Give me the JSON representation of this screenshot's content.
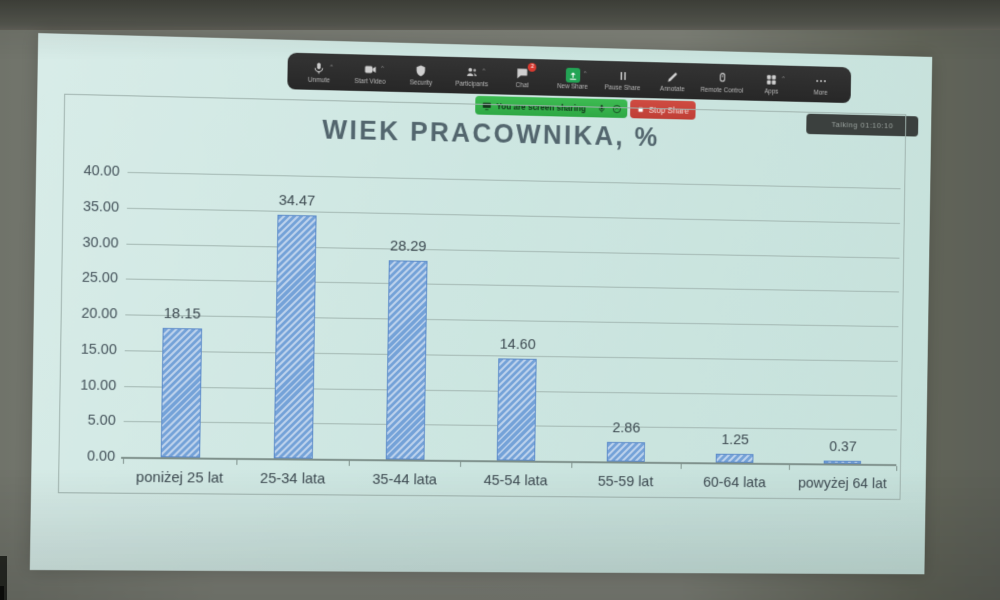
{
  "scene": {
    "corner_badge": "Talking 01:10:10"
  },
  "zoom_toolbar": {
    "items": [
      {
        "label": "Unmute",
        "icon": "mic-icon",
        "caret": true
      },
      {
        "label": "Start Video",
        "icon": "video-camera-icon",
        "caret": true
      },
      {
        "label": "Security",
        "icon": "shield-icon"
      },
      {
        "label": "Participants",
        "icon": "participants-icon",
        "caret": true
      },
      {
        "label": "Chat",
        "icon": "chat-bubble-icon",
        "badge": "2"
      },
      {
        "label": "New Share",
        "icon": "share-screen-icon",
        "caret": true,
        "highlight": true
      },
      {
        "label": "Pause Share",
        "icon": "pause-icon"
      },
      {
        "label": "Annotate",
        "icon": "pencil-icon"
      },
      {
        "label": "Remote Control",
        "icon": "remote-control-icon"
      },
      {
        "label": "Apps",
        "icon": "apps-grid-icon",
        "caret": true
      },
      {
        "label": "More",
        "icon": "ellipsis-icon"
      }
    ]
  },
  "share_banner": {
    "text": "You are screen sharing",
    "stop_label": "Stop Share"
  },
  "chart_data": {
    "type": "bar",
    "title": "WIEK PRACOWNIKA, %",
    "categories": [
      "poniżej 25 lat",
      "25-34 lata",
      "35-44 lata",
      "45-54 lata",
      "55-59 lat",
      "60-64 lata",
      "powyżej 64 lat"
    ],
    "values": [
      18.15,
      34.47,
      28.29,
      14.6,
      2.86,
      1.25,
      0.37
    ],
    "value_labels": [
      "18.15",
      "34.47",
      "28.29",
      "14.60",
      "2.86",
      "1.25",
      "0.37"
    ],
    "xlabel": "",
    "ylabel": "",
    "ylim": [
      0,
      40
    ],
    "ytick_step": 5,
    "grid": true,
    "legend": false,
    "colors": {
      "bar_fill": "#74a2d8",
      "bar_hatch": "#bdd2ec",
      "bar_border": "#5d8bc9",
      "gridline": "#a3b7b2",
      "text": "#3e4b52",
      "title": "#53666e",
      "slide_background": "#cde6e1"
    }
  }
}
